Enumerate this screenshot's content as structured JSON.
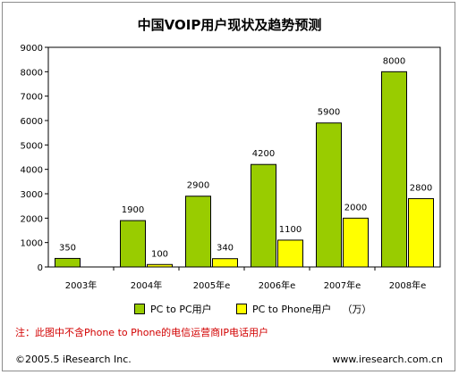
{
  "chart_data": {
    "type": "bar",
    "title": "中国VOIP用户现状及趋势预测",
    "categories": [
      "2003年",
      "2004年",
      "2005年e",
      "2006年e",
      "2007年e",
      "2008年e"
    ],
    "series": [
      {
        "name": "PC to PC用户",
        "values": [
          350,
          1900,
          2900,
          4200,
          5900,
          8000
        ],
        "labels": [
          "350",
          "1900",
          "2900",
          "4200",
          "5900",
          "8000"
        ]
      },
      {
        "name": "PC to Phone用户",
        "values": [
          null,
          100,
          340,
          1100,
          2000,
          2800
        ],
        "labels": [
          "",
          "100",
          "340",
          "1100",
          "2000",
          "2800"
        ]
      }
    ],
    "ylim": [
      0,
      9000
    ],
    "yticks": [
      0,
      1000,
      2000,
      3000,
      4000,
      5000,
      6000,
      7000,
      8000,
      9000
    ],
    "legend_unit": "（万）",
    "grid": false,
    "legend_position": "bottom"
  },
  "colors": {
    "pc_to_pc": "#99cc00",
    "pc_to_phone": "#ffff00",
    "note": "#d20000"
  },
  "note": "注：此图中不含Phone to Phone的电信运营商IP电话用户",
  "footer": {
    "copyright": "©2005.5 iResearch Inc.",
    "website": "www.iresearch.com.cn"
  }
}
